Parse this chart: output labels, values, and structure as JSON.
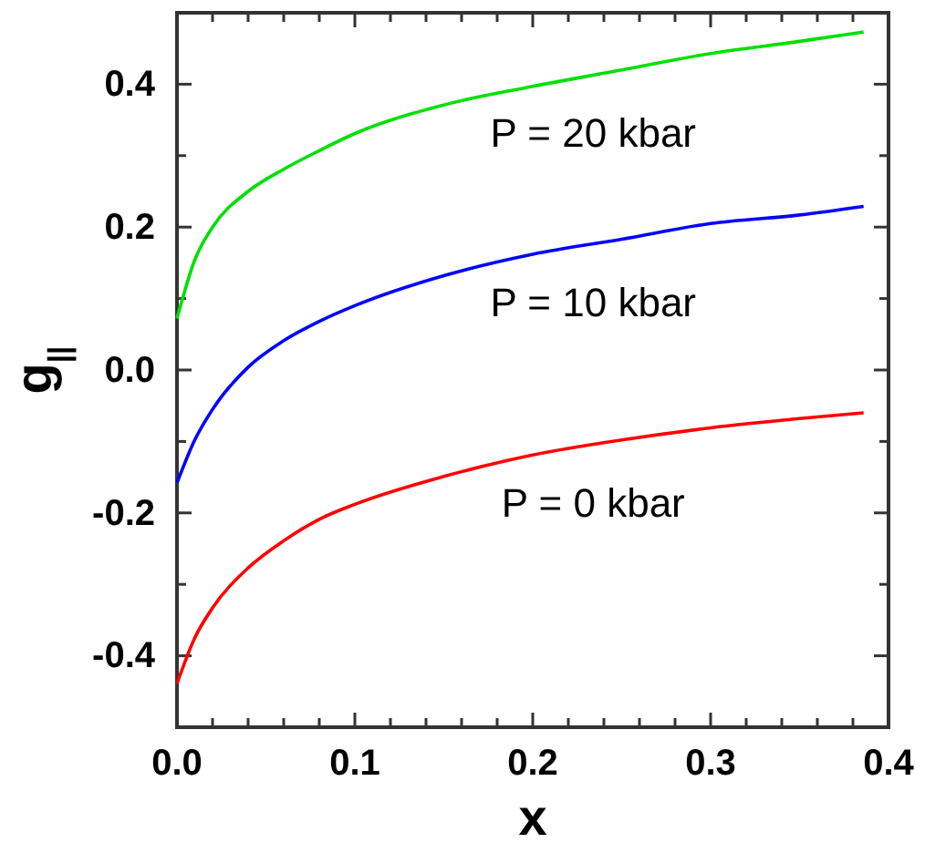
{
  "chart_data": {
    "type": "line",
    "xlabel": "x",
    "ylabel": "g$_{||}$",
    "x": [
      0,
      0.01,
      0.02,
      0.04,
      0.06,
      0.08,
      0.1,
      0.15,
      0.2,
      0.25,
      0.3,
      0.35,
      0.386
    ],
    "series": [
      {
        "name": "P = 20 kbar",
        "color": "#00e000",
        "values": [
          0.072,
          0.154,
          0.2,
          0.25,
          0.281,
          0.307,
          0.331,
          0.371,
          0.397,
          0.42,
          0.443,
          0.46,
          0.473
        ]
      },
      {
        "name": "P = 10 kbar",
        "color": "#0000ff",
        "values": [
          -0.158,
          -0.098,
          -0.055,
          0.004,
          0.041,
          0.068,
          0.09,
          0.132,
          0.162,
          0.183,
          0.205,
          0.217,
          0.229
        ]
      },
      {
        "name": "P = 0 kbar",
        "color": "#ff0000",
        "values": [
          -0.439,
          -0.375,
          -0.333,
          -0.277,
          -0.239,
          -0.209,
          -0.188,
          -0.149,
          -0.119,
          -0.098,
          -0.081,
          -0.068,
          -0.06
        ]
      }
    ],
    "xlim": [
      0,
      0.4
    ],
    "ylim": [
      -0.5,
      0.5
    ],
    "xticks": [
      {
        "value": 0,
        "label": "0.0"
      },
      {
        "value": 0.02,
        "label": null
      },
      {
        "value": 0.04,
        "label": null
      },
      {
        "value": 0.06,
        "label": null
      },
      {
        "value": 0.08,
        "label": null
      },
      0.1,
      {
        "value": 0.12,
        "label": null
      },
      {
        "value": 0.14,
        "label": null
      },
      {
        "value": 0.16,
        "label": null
      },
      {
        "value": 0.18,
        "label": null
      },
      0.2,
      {
        "value": 0.22,
        "label": null
      },
      {
        "value": 0.24,
        "label": null
      },
      {
        "value": 0.26,
        "label": null
      },
      {
        "value": 0.28,
        "label": null
      },
      0.3,
      {
        "value": 0.32,
        "label": null
      },
      {
        "value": 0.34,
        "label": null
      },
      {
        "value": 0.36,
        "label": null
      },
      {
        "value": 0.38,
        "label": null
      },
      0.4
    ],
    "yticks": [
      -0.4,
      {
        "value": -0.3,
        "label": null
      },
      -0.2,
      {
        "value": -0.1,
        "label": null
      },
      {
        "value": 0,
        "label": "0.0"
      },
      {
        "value": 0.1,
        "label": null
      },
      0.2,
      {
        "value": 0.3,
        "label": null
      },
      0.4
    ],
    "grid": false
  }
}
